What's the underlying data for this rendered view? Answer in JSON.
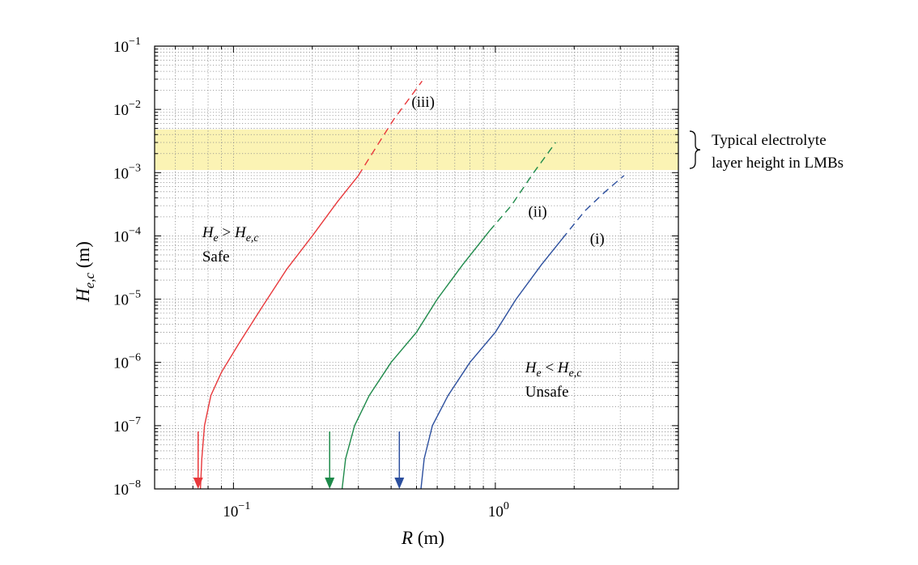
{
  "chart_data": {
    "type": "line",
    "xscale": "log",
    "yscale": "log",
    "xlim": [
      0.05,
      5.0
    ],
    "ylim": [
      1e-08,
      0.1
    ],
    "grid": true,
    "xlabel": {
      "symbol": "R",
      "unit": "(m)"
    },
    "ylabel": {
      "symbol": "H",
      "subscript": "e,c",
      "unit": "(m)"
    },
    "xticks": [
      {
        "value": 0.1,
        "base": "10",
        "exp": "−1"
      },
      {
        "value": 1.0,
        "base": "10",
        "exp": "0"
      }
    ],
    "yticks": [
      {
        "value": 1e-08,
        "base": "10",
        "exp": "−8"
      },
      {
        "value": 1e-07,
        "base": "10",
        "exp": "−7"
      },
      {
        "value": 1e-06,
        "base": "10",
        "exp": "−6"
      },
      {
        "value": 1e-05,
        "base": "10",
        "exp": "−5"
      },
      {
        "value": 0.0001,
        "base": "10",
        "exp": "−4"
      },
      {
        "value": 0.001,
        "base": "10",
        "exp": "−3"
      },
      {
        "value": 0.01,
        "base": "10",
        "exp": "−2"
      },
      {
        "value": 0.1,
        "base": "10",
        "exp": "−1"
      }
    ],
    "band": {
      "y_range": [
        0.0011,
        0.0048
      ],
      "color": "#fbf3b4",
      "label_line1": "Typical electrolyte",
      "label_line2": "layer height in LMBs"
    },
    "series": [
      {
        "name": "(iii)",
        "color": "#e8383b",
        "solid": [
          [
            0.0748,
            1e-08
          ],
          [
            0.0757,
            3e-08
          ],
          [
            0.0775,
            1e-07
          ],
          [
            0.082,
            3e-07
          ],
          [
            0.09,
            7e-07
          ],
          [
            0.105,
            2e-06
          ],
          [
            0.13,
            8e-06
          ],
          [
            0.16,
            3e-05
          ],
          [
            0.2,
            0.0001
          ],
          [
            0.25,
            0.00035
          ],
          [
            0.3,
            0.0009
          ]
        ],
        "dashed": [
          [
            0.3,
            0.0009
          ],
          [
            0.35,
            0.0025
          ],
          [
            0.41,
            0.007
          ],
          [
            0.47,
            0.015
          ],
          [
            0.525,
            0.028
          ]
        ],
        "arrow_x": 0.0733,
        "label_x": 0.53,
        "label_y": 0.013
      },
      {
        "name": "(ii)",
        "color": "#1e8a4a",
        "solid": [
          [
            0.26,
            1e-08
          ],
          [
            0.268,
            3e-08
          ],
          [
            0.29,
            1e-07
          ],
          [
            0.33,
            3e-07
          ],
          [
            0.4,
            1e-06
          ],
          [
            0.5,
            3e-06
          ],
          [
            0.6,
            1e-05
          ],
          [
            0.75,
            3.5e-05
          ],
          [
            0.95,
            0.00012
          ]
        ],
        "dashed": [
          [
            0.95,
            0.00012
          ],
          [
            1.15,
            0.0003
          ],
          [
            1.4,
            0.001
          ],
          [
            1.7,
            0.003
          ]
        ],
        "arrow_x": 0.233,
        "label_x": 1.45,
        "label_y": 0.00024
      },
      {
        "name": "(i)",
        "color": "#2c4f9e",
        "solid": [
          [
            0.52,
            1e-08
          ],
          [
            0.535,
            3e-08
          ],
          [
            0.575,
            1e-07
          ],
          [
            0.66,
            3e-07
          ],
          [
            0.8,
            1e-06
          ],
          [
            1.0,
            3e-06
          ],
          [
            1.2,
            1e-05
          ],
          [
            1.5,
            3.5e-05
          ],
          [
            1.8,
            9e-05
          ]
        ],
        "dashed": [
          [
            1.8,
            9e-05
          ],
          [
            2.2,
            0.00025
          ],
          [
            2.6,
            0.00048
          ],
          [
            3.1,
            0.0009
          ]
        ],
        "arrow_x": 0.43,
        "label_x": 2.45,
        "label_y": 9e-05
      }
    ],
    "annotations": [
      {
        "text_main": "H",
        "sub1": "e",
        "op": " > ",
        "text2": "H",
        "sub2": "e,c",
        "line2": "Safe",
        "x": 0.076,
        "y": 9.5e-05
      },
      {
        "text_main": "H",
        "sub1": "e",
        "op": " < ",
        "text2": "H",
        "sub2": "e,c",
        "line2": "Unsafe",
        "x": 1.3,
        "y": 7e-07
      }
    ]
  }
}
